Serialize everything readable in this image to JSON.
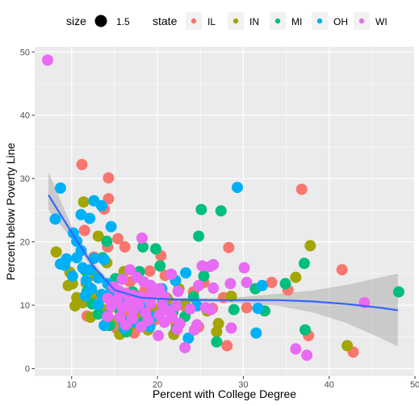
{
  "chart_data": {
    "type": "scatter",
    "title": "",
    "xlabel": "Percent with College Degree",
    "ylabel": "Percent below Poverty Line",
    "xlim": [
      5.7,
      49.9
    ],
    "ylim": [
      -1.2,
      50.8
    ],
    "x_ticks": [
      "10",
      "20",
      "30",
      "40",
      "50"
    ],
    "y_ticks": [
      "0",
      "10",
      "20",
      "30",
      "40",
      "50"
    ],
    "grid": true,
    "legend_position": "top",
    "legend": {
      "size_title": "size",
      "size_label": "1.5",
      "state_title": "state",
      "states": [
        {
          "name": "IL",
          "color": "#F8766D"
        },
        {
          "name": "IN",
          "color": "#A3A500"
        },
        {
          "name": "MI",
          "color": "#00BF7D"
        },
        {
          "name": "OH",
          "color": "#00B0F6"
        },
        {
          "name": "WI",
          "color": "#E76BF3"
        }
      ]
    },
    "smooth": {
      "color": "#3366FF",
      "band_color": "#999999",
      "x": [
        7.3,
        10,
        12.5,
        15,
        18,
        22,
        26,
        30,
        34,
        38,
        42,
        46,
        48
      ],
      "y": [
        27.4,
        21.5,
        16.2,
        12.4,
        11.2,
        10.9,
        10.8,
        10.8,
        10.8,
        10.6,
        10.2,
        9.6,
        9.2
      ],
      "lower": [
        25,
        20.5,
        15.6,
        12,
        10.8,
        10.6,
        10.5,
        10.3,
        9.9,
        8.9,
        7.2,
        4.8,
        3.5
      ],
      "upper": [
        31,
        22.5,
        16.8,
        12.8,
        11.6,
        11.2,
        11.1,
        11.3,
        11.8,
        12.3,
        13.2,
        14.4,
        15
      ]
    },
    "series": [
      {
        "name": "IL",
        "color": "#F8766D",
        "points": [
          [
            11.2,
            32.2
          ],
          [
            14.3,
            30.1
          ],
          [
            14.3,
            26.8
          ],
          [
            13.8,
            25.2
          ],
          [
            11.5,
            21.8
          ],
          [
            15.4,
            20.5
          ],
          [
            14.2,
            19.2
          ],
          [
            16.2,
            19.2
          ],
          [
            20.4,
            17.8
          ],
          [
            28.3,
            19.1
          ],
          [
            36.8,
            28.3
          ],
          [
            41.5,
            15.6
          ],
          [
            42.8,
            2.6
          ],
          [
            28.1,
            3.6
          ],
          [
            35.2,
            12.4
          ],
          [
            33.3,
            13.6
          ],
          [
            20.9,
            14.7
          ],
          [
            25.4,
            13.6
          ],
          [
            12.1,
            12.8
          ],
          [
            18.6,
            12.5
          ],
          [
            17.8,
            11.5
          ],
          [
            21.5,
            10.4
          ],
          [
            23.2,
            9.8
          ],
          [
            26.4,
            9.5
          ],
          [
            30.4,
            9.6
          ],
          [
            14.3,
            9.4
          ],
          [
            16.5,
            8.9
          ],
          [
            19.6,
            7.6
          ],
          [
            22.1,
            7.2
          ],
          [
            24.8,
            6.6
          ],
          [
            15.2,
            6.4
          ],
          [
            37.6,
            5.2
          ],
          [
            17.3,
            5.6
          ],
          [
            11.8,
            8.3
          ],
          [
            13.2,
            10.8
          ],
          [
            16.8,
            13.7
          ],
          [
            19.1,
            15.4
          ],
          [
            24.2,
            12.1
          ],
          [
            27.7,
            11.2
          ],
          [
            12.6,
            17.6
          ]
        ]
      },
      {
        "name": "IN",
        "color": "#A3A500",
        "points": [
          [
            11.4,
            26.3
          ],
          [
            13.1,
            20.9
          ],
          [
            37.8,
            19.4
          ],
          [
            8.2,
            18.4
          ],
          [
            9.8,
            15.2
          ],
          [
            10.1,
            13.4
          ],
          [
            9.6,
            13.1
          ],
          [
            10.6,
            11.2
          ],
          [
            11.3,
            10.4
          ],
          [
            10.4,
            9.9
          ],
          [
            12.2,
            8.1
          ],
          [
            11.7,
            13.5
          ],
          [
            12.5,
            11.8
          ],
          [
            13.6,
            9.3
          ],
          [
            14.8,
            7.5
          ],
          [
            15.6,
            5.4
          ],
          [
            16.9,
            6.8
          ],
          [
            18.2,
            8.6
          ],
          [
            19.4,
            9.6
          ],
          [
            21.1,
            11.1
          ],
          [
            22.5,
            12.6
          ],
          [
            27.1,
            7.1
          ],
          [
            26.9,
            5.8
          ],
          [
            36.1,
            14.4
          ],
          [
            42.1,
            3.6
          ],
          [
            17.5,
            11.2
          ],
          [
            20.1,
            8.6
          ],
          [
            23.2,
            10.2
          ],
          [
            25.8,
            9.1
          ],
          [
            28.6,
            11.4
          ],
          [
            12.8,
            14.6
          ],
          [
            14.1,
            16.7
          ],
          [
            16.1,
            15.3
          ],
          [
            18.9,
            6.1
          ],
          [
            21.9,
            5.4
          ]
        ]
      },
      {
        "name": "MI",
        "color": "#00BF7D",
        "points": [
          [
            25.1,
            25.1
          ],
          [
            27.4,
            24.9
          ],
          [
            24.8,
            20.9
          ],
          [
            14.1,
            20.1
          ],
          [
            18.3,
            19.2
          ],
          [
            19.8,
            18.9
          ],
          [
            37.1,
            16.6
          ],
          [
            34.9,
            13.4
          ],
          [
            31.4,
            12.6
          ],
          [
            48.1,
            12.1
          ],
          [
            37.2,
            6.1
          ],
          [
            26.9,
            4.2
          ],
          [
            23.2,
            8.2
          ],
          [
            13.1,
            8.6
          ],
          [
            11.8,
            12.2
          ],
          [
            15.1,
            14.2
          ],
          [
            16.8,
            11.6
          ],
          [
            17.9,
            15.3
          ],
          [
            19.2,
            13.1
          ],
          [
            20.6,
            10.5
          ],
          [
            21.8,
            8.9
          ],
          [
            15.6,
            9.2
          ],
          [
            14.4,
            6.8
          ],
          [
            16.4,
            5.8
          ],
          [
            18.4,
            7.4
          ],
          [
            22.2,
            6.3
          ],
          [
            24.2,
            11.3
          ],
          [
            25.4,
            14.6
          ],
          [
            28.9,
            9.3
          ],
          [
            32.5,
            9.1
          ],
          [
            13.6,
            17.5
          ],
          [
            11.6,
            15.5
          ],
          [
            12.4,
            10.2
          ],
          [
            17.1,
            12.1
          ],
          [
            20.3,
            16.2
          ]
        ]
      },
      {
        "name": "OH",
        "color": "#00B0F6",
        "points": [
          [
            29.3,
            28.6
          ],
          [
            8.7,
            28.5
          ],
          [
            12.6,
            26.5
          ],
          [
            11.1,
            24.3
          ],
          [
            13.5,
            25.7
          ],
          [
            8.1,
            23.6
          ],
          [
            12.1,
            23.7
          ],
          [
            14.6,
            22.4
          ],
          [
            10.2,
            21.4
          ],
          [
            10.6,
            20.1
          ],
          [
            11.1,
            18.6
          ],
          [
            9.4,
            17.3
          ],
          [
            10.6,
            17.5
          ],
          [
            12.6,
            17.4
          ],
          [
            13.8,
            17.2
          ],
          [
            8.7,
            16.5
          ],
          [
            9.2,
            16.3
          ],
          [
            11.3,
            15.9
          ],
          [
            12.2,
            15.6
          ],
          [
            10.1,
            14.6
          ],
          [
            11.7,
            13.9
          ],
          [
            13.1,
            14.3
          ],
          [
            14.2,
            13.4
          ],
          [
            12.3,
            12.6
          ],
          [
            13.5,
            11.7
          ],
          [
            14.6,
            12.1
          ],
          [
            16.5,
            11.4
          ],
          [
            17.9,
            10.6
          ],
          [
            15.4,
            10.5
          ],
          [
            11.6,
            11.5
          ],
          [
            13.1,
            10.1
          ],
          [
            18.3,
            9.5
          ],
          [
            19.5,
            8.2
          ],
          [
            21.4,
            9.3
          ],
          [
            14.1,
            8.3
          ],
          [
            15.8,
            7.8
          ],
          [
            17.3,
            7.3
          ],
          [
            19.1,
            6.6
          ],
          [
            13.8,
            6.8
          ],
          [
            16.1,
            6.4
          ],
          [
            23.3,
            15.1
          ],
          [
            22.1,
            13.9
          ],
          [
            20.5,
            12.6
          ],
          [
            31.7,
            9.5
          ],
          [
            32.2,
            13.1
          ],
          [
            31.5,
            5.6
          ],
          [
            23.6,
            4.8
          ],
          [
            24.6,
            9.9
          ]
        ]
      },
      {
        "name": "WI",
        "color": "#E76BF3",
        "points": [
          [
            7.2,
            48.7
          ],
          [
            18.2,
            20.6
          ],
          [
            26.1,
            16.1
          ],
          [
            26.5,
            16.4
          ],
          [
            30.1,
            15.9
          ],
          [
            25.2,
            16.2
          ],
          [
            21.6,
            14.9
          ],
          [
            16.8,
            15.6
          ],
          [
            15.9,
            14.1
          ],
          [
            17.6,
            14.4
          ],
          [
            18.4,
            13.7
          ],
          [
            19.2,
            13.1
          ],
          [
            20.2,
            12.6
          ],
          [
            14.9,
            12.9
          ],
          [
            15.5,
            12.3
          ],
          [
            16.3,
            11.9
          ],
          [
            17.1,
            11.6
          ],
          [
            18.1,
            11.3
          ],
          [
            19.3,
            11.5
          ],
          [
            20.8,
            11.4
          ],
          [
            22.4,
            12.2
          ],
          [
            24.8,
            13.1
          ],
          [
            26.5,
            12.7
          ],
          [
            28.5,
            13.4
          ],
          [
            30.4,
            13.6
          ],
          [
            14.2,
            11.1
          ],
          [
            15.3,
            10.8
          ],
          [
            16.7,
            10.5
          ],
          [
            17.8,
            10.1
          ],
          [
            19.2,
            10.3
          ],
          [
            20.6,
            10.1
          ],
          [
            22.2,
            9.9
          ],
          [
            23.8,
            9.4
          ],
          [
            25.6,
            9.6
          ],
          [
            14.6,
            9.9
          ],
          [
            15.9,
            9.6
          ],
          [
            17.2,
            9.2
          ],
          [
            18.6,
            8.8
          ],
          [
            20.2,
            8.5
          ],
          [
            21.7,
            8.2
          ],
          [
            14.2,
            8.2
          ],
          [
            15.6,
            8.1
          ],
          [
            17.1,
            7.9
          ],
          [
            18.9,
            7.6
          ],
          [
            20.8,
            7.3
          ],
          [
            22.6,
            7.1
          ],
          [
            24.6,
            6.9
          ],
          [
            16.3,
            6.9
          ],
          [
            18.1,
            6.6
          ],
          [
            20.1,
            5.2
          ],
          [
            22.3,
            6.2
          ],
          [
            24.3,
            6.1
          ],
          [
            26.2,
            9.3
          ],
          [
            28.6,
            6.4
          ],
          [
            36.1,
            3.1
          ],
          [
            37.4,
            2.1
          ],
          [
            23.2,
            3.3
          ],
          [
            44.1,
            10.4
          ],
          [
            21.2,
            9.1
          ],
          [
            19.8,
            12.1
          ]
        ]
      }
    ]
  }
}
